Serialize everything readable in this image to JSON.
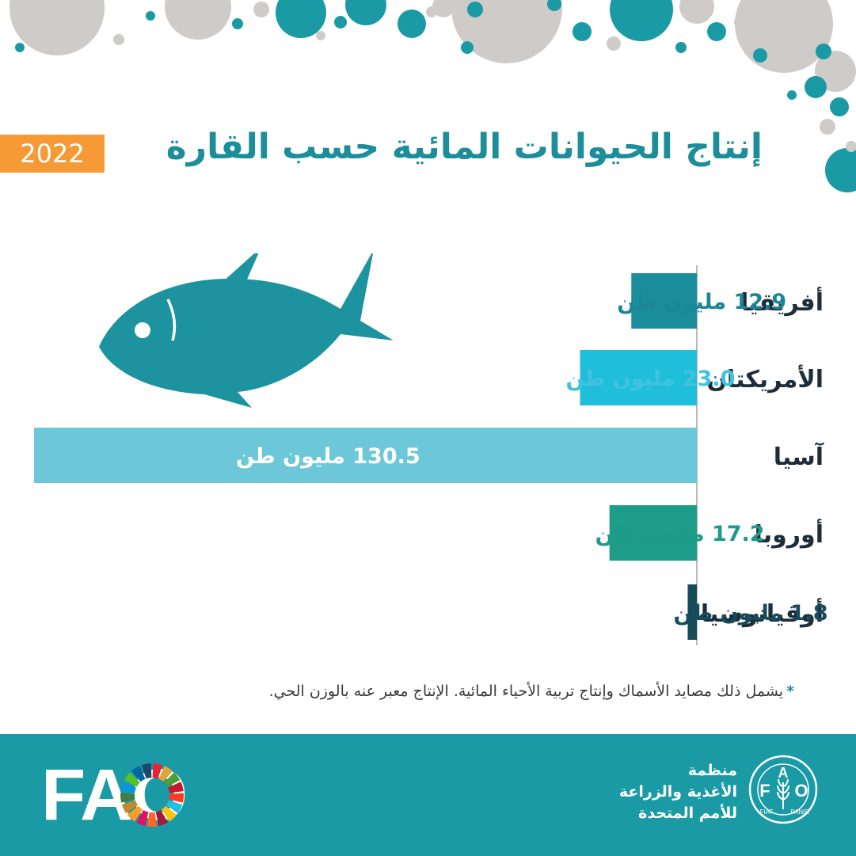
{
  "title": "إنتاج الحيوانات المائية حسب القارة",
  "year": "2022",
  "colors": {
    "title": "#1c8e99",
    "accent_orange": "#f59a35",
    "footer_bg": "#1a9aa5",
    "decor_teal": "#1a9aa5",
    "decor_gray": "#cfcbc9",
    "fish": "#1d93a0"
  },
  "chart_data": {
    "type": "bar",
    "orientation": "horizontal",
    "title": "إنتاج الحيوانات المائية حسب القارة",
    "categories": [
      "أفريقيا",
      "الأمريكتان",
      "آسيا",
      "أوروبا",
      "أوقيانوسيا"
    ],
    "values": [
      12.9,
      23.0,
      130.5,
      17.2,
      1.8
    ],
    "value_labels": [
      "12.9 مليون طن",
      "23.0 مليون طن",
      "130.5 مليون طن",
      "17.2 مليون طن",
      "1.8 مليون طن"
    ],
    "colors": [
      "#198d9c",
      "#1fbfdc",
      "#6cc8d8",
      "#1d9c8a",
      "#174d5b"
    ],
    "label_colors": [
      "#1b8695",
      "#40c2e0",
      "#ffffff",
      "#1d9a89",
      "#174d5b"
    ],
    "xlim": [
      0,
      130.5
    ],
    "grid": false,
    "legend": "none"
  },
  "footnote": {
    "star": "*",
    "text": "يشمل ذلك مصايد الأسماك وإنتاج تربية الأحياء المائية. الإنتاج معبر عنه بالوزن الحي."
  },
  "footer": {
    "logo_text": "FAO",
    "org_lines": [
      "منظمة",
      "الأغذية والزراعة",
      "للأمم المتحدة"
    ],
    "emblem_letters": "FAO",
    "emblem_motto_left": "FIAT",
    "emblem_motto_right": "PANIS",
    "sdg_icon": "sdg-wheel-icon",
    "fao_emblem_icon": "fao-emblem-icon"
  }
}
